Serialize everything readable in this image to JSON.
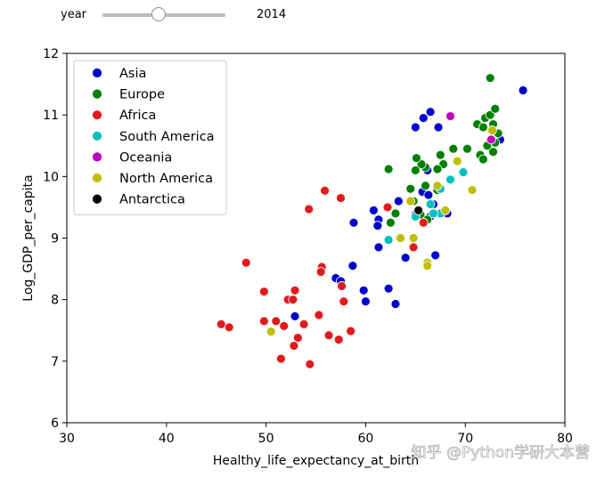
{
  "controls": {
    "slider_label": "year",
    "slider_value": "2014",
    "slider_fraction": 0.45
  },
  "watermark": "知乎 @Python学研大本营",
  "chart_data": {
    "type": "scatter",
    "title": "",
    "xlabel": "Healthy_life_expectancy_at_birth",
    "ylabel": "Log_GDP_per_capita",
    "xlim": [
      30,
      80
    ],
    "ylim": [
      6,
      12
    ],
    "xticks": [
      30,
      40,
      50,
      60,
      70,
      80
    ],
    "yticks": [
      6,
      7,
      8,
      9,
      10,
      11,
      12
    ],
    "grid": false,
    "legend_position": "top-left",
    "series": [
      {
        "name": "Asia",
        "color": "#0000cc",
        "points": [
          [
            75.8,
            11.4
          ],
          [
            73.5,
            10.6
          ],
          [
            66.5,
            11.05
          ],
          [
            65.8,
            10.95
          ],
          [
            65.0,
            10.8
          ],
          [
            67.3,
            10.8
          ],
          [
            66.2,
            10.1
          ],
          [
            65.7,
            9.75
          ],
          [
            66.3,
            9.7
          ],
          [
            66.8,
            9.55
          ],
          [
            63.3,
            9.6
          ],
          [
            65.0,
            9.38
          ],
          [
            66.5,
            9.35
          ],
          [
            68.2,
            9.4
          ],
          [
            60.8,
            9.45
          ],
          [
            61.3,
            9.3
          ],
          [
            61.2,
            9.2
          ],
          [
            58.8,
            9.25
          ],
          [
            61.3,
            8.85
          ],
          [
            64.0,
            8.68
          ],
          [
            67.0,
            8.72
          ],
          [
            58.7,
            8.55
          ],
          [
            57.0,
            8.35
          ],
          [
            57.5,
            8.3
          ],
          [
            59.8,
            8.15
          ],
          [
            62.3,
            8.18
          ],
          [
            60.0,
            7.97
          ],
          [
            63.0,
            7.93
          ],
          [
            52.9,
            7.73
          ]
        ]
      },
      {
        "name": "Europe",
        "color": "#008000",
        "points": [
          [
            72.5,
            11.6
          ],
          [
            71.2,
            10.85
          ],
          [
            72.0,
            10.95
          ],
          [
            72.5,
            11.0
          ],
          [
            73.0,
            11.1
          ],
          [
            71.8,
            10.8
          ],
          [
            72.8,
            10.85
          ],
          [
            73.3,
            10.7
          ],
          [
            72.7,
            10.6
          ],
          [
            72.2,
            10.5
          ],
          [
            71.5,
            10.35
          ],
          [
            72.8,
            10.4
          ],
          [
            73.0,
            10.55
          ],
          [
            71.8,
            10.28
          ],
          [
            70.2,
            10.45
          ],
          [
            68.8,
            10.45
          ],
          [
            67.5,
            10.35
          ],
          [
            67.8,
            10.2
          ],
          [
            67.2,
            10.12
          ],
          [
            66.0,
            10.15
          ],
          [
            65.6,
            10.2
          ],
          [
            65.0,
            10.1
          ],
          [
            65.1,
            10.3
          ],
          [
            62.3,
            10.12
          ],
          [
            66.0,
            9.85
          ],
          [
            64.5,
            9.8
          ],
          [
            67.2,
            9.78
          ],
          [
            64.8,
            9.6
          ],
          [
            63.0,
            9.4
          ],
          [
            62.5,
            9.25
          ],
          [
            65.5,
            9.38
          ],
          [
            66.2,
            9.3
          ]
        ]
      },
      {
        "name": "Africa",
        "color": "#e31a1c",
        "points": [
          [
            55.9,
            9.77
          ],
          [
            57.5,
            9.65
          ],
          [
            54.3,
            9.47
          ],
          [
            65.8,
            9.25
          ],
          [
            62.2,
            9.5
          ],
          [
            64.8,
            8.85
          ],
          [
            48.0,
            8.6
          ],
          [
            55.6,
            8.53
          ],
          [
            55.5,
            8.45
          ],
          [
            57.6,
            8.22
          ],
          [
            49.8,
            8.13
          ],
          [
            52.9,
            8.15
          ],
          [
            52.2,
            8.0
          ],
          [
            52.7,
            8.0
          ],
          [
            57.8,
            7.97
          ],
          [
            53.8,
            7.6
          ],
          [
            55.3,
            7.75
          ],
          [
            49.8,
            7.65
          ],
          [
            51.0,
            7.65
          ],
          [
            51.8,
            7.57
          ],
          [
            45.5,
            7.6
          ],
          [
            46.3,
            7.55
          ],
          [
            53.2,
            7.38
          ],
          [
            56.3,
            7.42
          ],
          [
            57.3,
            7.35
          ],
          [
            58.5,
            7.49
          ],
          [
            52.8,
            7.25
          ],
          [
            51.5,
            7.04
          ],
          [
            54.4,
            6.95
          ]
        ]
      },
      {
        "name": "South America",
        "color": "#00bfbf",
        "points": [
          [
            69.8,
            10.07
          ],
          [
            68.5,
            9.95
          ],
          [
            67.5,
            9.8
          ],
          [
            66.5,
            9.55
          ],
          [
            67.5,
            9.4
          ],
          [
            66.8,
            9.4
          ],
          [
            65.0,
            9.35
          ],
          [
            62.3,
            8.97
          ]
        ]
      },
      {
        "name": "Oceania",
        "color": "#bf00bf",
        "points": [
          [
            68.5,
            10.98
          ],
          [
            72.6,
            10.6
          ]
        ]
      },
      {
        "name": "North America",
        "color": "#bfbf00",
        "points": [
          [
            72.7,
            10.75
          ],
          [
            69.2,
            10.25
          ],
          [
            70.7,
            9.78
          ],
          [
            67.2,
            9.85
          ],
          [
            64.5,
            9.6
          ],
          [
            68.0,
            9.45
          ],
          [
            63.5,
            9.0
          ],
          [
            64.8,
            9.0
          ],
          [
            66.2,
            8.6
          ],
          [
            66.2,
            8.55
          ],
          [
            50.5,
            7.48
          ]
        ]
      },
      {
        "name": "Antarctica",
        "color": "#000000",
        "points": [
          [
            65.3,
            9.45
          ]
        ]
      }
    ]
  }
}
